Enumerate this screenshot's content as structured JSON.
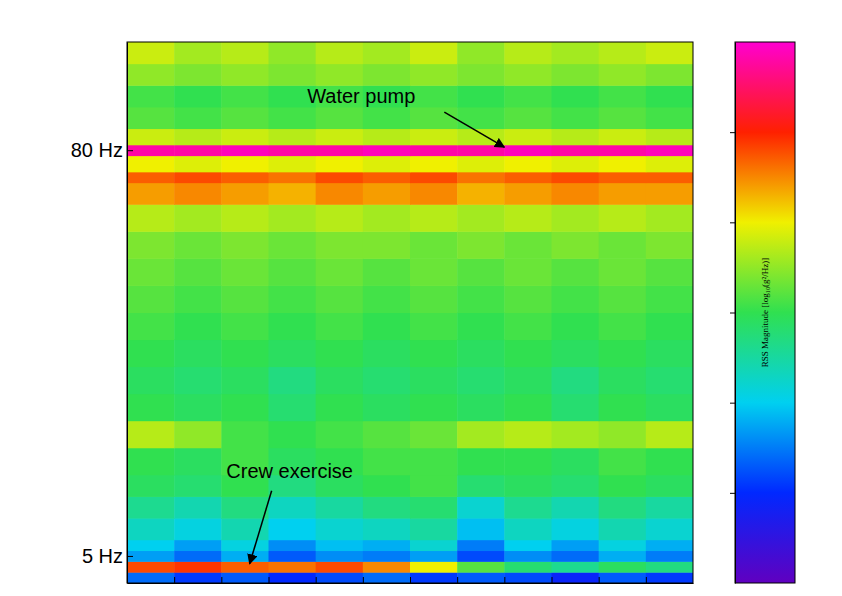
{
  "chart_data": {
    "type": "heatmap",
    "tick_labels": "y",
    "xlim": [
      0,
      12
    ],
    "xticks": [
      1,
      2,
      3,
      4,
      5,
      6,
      7,
      8,
      9,
      10,
      11
    ],
    "ylim": [
      0,
      100
    ],
    "yticks": [
      {
        "value": 5,
        "label": "5 Hz"
      },
      {
        "value": 80,
        "label": "80 Hz"
      }
    ],
    "x_bins": [
      0,
      1,
      2,
      3,
      4,
      5,
      6,
      7,
      8,
      9,
      10,
      11,
      12
    ],
    "y_bins": [
      0,
      2,
      4,
      6,
      8,
      12,
      16,
      20,
      25,
      30,
      35,
      40,
      45,
      50,
      55,
      60,
      65,
      70,
      74,
      76,
      79,
      81,
      84,
      88,
      92,
      96,
      100
    ],
    "values": [
      [
        -8.6,
        -8.9,
        -8.7,
        -9.0,
        -8.8,
        -8.6,
        -8.9,
        -8.7,
        -8.8,
        -9.1,
        -8.7,
        -8.9
      ],
      [
        -5.2,
        -5.1,
        -5.3,
        -5.4,
        -5.2,
        -5.5,
        -6.0,
        -6.8,
        -7.2,
        -7.4,
        -7.1,
        -7.3
      ],
      [
        -8.3,
        -8.6,
        -8.2,
        -8.7,
        -8.4,
        -8.5,
        -8.3,
        -8.8,
        -8.4,
        -8.6,
        -8.2,
        -8.5
      ],
      [
        -8.0,
        -8.3,
        -7.9,
        -8.4,
        -8.1,
        -8.2,
        -7.8,
        -8.5,
        -8.0,
        -8.3,
        -7.9,
        -8.2
      ],
      [
        -7.7,
        -7.9,
        -7.6,
        -8.0,
        -7.8,
        -7.7,
        -7.5,
        -8.1,
        -7.7,
        -7.9,
        -7.6,
        -7.8
      ],
      [
        -7.4,
        -7.6,
        -7.3,
        -7.7,
        -7.5,
        -7.3,
        -7.2,
        -7.8,
        -7.4,
        -7.6,
        -7.3,
        -7.5
      ],
      [
        -7.1,
        -7.2,
        -7.0,
        -7.3,
        -7.1,
        -7.0,
        -6.9,
        -7.2,
        -7.1,
        -7.2,
        -7.0,
        -7.1
      ],
      [
        -7.0,
        -7.1,
        -6.9,
        -7.1,
        -7.0,
        -6.9,
        -6.9,
        -7.0,
        -7.0,
        -7.1,
        -6.9,
        -7.0
      ],
      [
        -6.3,
        -6.5,
        -6.9,
        -7.0,
        -6.9,
        -6.8,
        -6.7,
        -6.4,
        -6.3,
        -6.4,
        -6.5,
        -6.3
      ],
      [
        -7.0,
        -7.1,
        -7.0,
        -7.2,
        -7.0,
        -7.1,
        -7.0,
        -7.1,
        -7.0,
        -7.2,
        -7.0,
        -7.1
      ],
      [
        -7.1,
        -7.2,
        -7.1,
        -7.3,
        -7.1,
        -7.2,
        -7.1,
        -7.2,
        -7.1,
        -7.3,
        -7.1,
        -7.2
      ],
      [
        -7.0,
        -7.1,
        -7.0,
        -7.1,
        -7.0,
        -7.1,
        -7.0,
        -7.1,
        -7.0,
        -7.1,
        -7.0,
        -7.1
      ],
      [
        -6.9,
        -7.0,
        -6.9,
        -7.0,
        -6.9,
        -7.0,
        -6.9,
        -7.0,
        -6.9,
        -7.0,
        -6.9,
        -7.0
      ],
      [
        -6.8,
        -6.9,
        -6.8,
        -6.9,
        -6.8,
        -6.9,
        -6.8,
        -6.9,
        -6.8,
        -6.9,
        -6.8,
        -6.9
      ],
      [
        -6.7,
        -6.8,
        -6.7,
        -6.8,
        -6.7,
        -6.8,
        -6.7,
        -6.8,
        -6.7,
        -6.8,
        -6.7,
        -6.8
      ],
      [
        -6.6,
        -6.7,
        -6.6,
        -6.7,
        -6.6,
        -6.6,
        -6.7,
        -6.6,
        -6.7,
        -6.6,
        -6.7,
        -6.6
      ],
      [
        -6.3,
        -6.4,
        -6.3,
        -6.4,
        -6.3,
        -6.4,
        -6.3,
        -6.4,
        -6.3,
        -6.4,
        -6.3,
        -6.4
      ],
      [
        -5.6,
        -5.5,
        -5.6,
        -5.7,
        -5.5,
        -5.6,
        -5.5,
        -5.7,
        -5.6,
        -5.5,
        -5.6,
        -5.6
      ],
      [
        -5.3,
        -5.2,
        -5.3,
        -5.4,
        -5.2,
        -5.3,
        -5.2,
        -5.4,
        -5.3,
        -5.2,
        -5.3,
        -5.3
      ],
      [
        -6.0,
        -6.1,
        -6.0,
        -6.1,
        -6.0,
        -6.1,
        -6.0,
        -6.1,
        -6.0,
        -6.1,
        -6.0,
        -6.1
      ],
      [
        -4.2,
        -4.2,
        -4.1,
        -4.2,
        -4.2,
        -4.1,
        -4.2,
        -4.2,
        -4.1,
        -4.2,
        -4.2,
        -4.1
      ],
      [
        -6.2,
        -6.3,
        -6.2,
        -6.3,
        -6.2,
        -6.3,
        -6.2,
        -6.3,
        -6.2,
        -6.3,
        -6.2,
        -6.3
      ],
      [
        -6.8,
        -6.9,
        -6.8,
        -6.9,
        -6.8,
        -6.9,
        -6.8,
        -6.9,
        -6.8,
        -6.9,
        -6.8,
        -6.9
      ],
      [
        -6.9,
        -7.0,
        -6.9,
        -7.0,
        -6.9,
        -7.0,
        -6.9,
        -7.0,
        -6.9,
        -7.0,
        -6.9,
        -7.0
      ],
      [
        -6.5,
        -6.6,
        -6.5,
        -6.6,
        -6.5,
        -6.6,
        -6.5,
        -6.6,
        -6.5,
        -6.6,
        -6.5,
        -6.6
      ],
      [
        -6.2,
        -6.4,
        -6.3,
        -6.5,
        -6.3,
        -6.4,
        -6.2,
        -6.5,
        -6.3,
        -6.4,
        -6.3,
        -6.2
      ]
    ],
    "colorbar": {
      "label": "RSS Magnitude [log₁₀(g²/Hz)]",
      "range": [
        -10,
        -4
      ],
      "ticks": [
        -9,
        -8,
        -7,
        -6,
        -5
      ]
    },
    "annotations": [
      {
        "text": "Water pump",
        "x": 8,
        "y": 80
      },
      {
        "text": "Crew exercise",
        "x": 2.6,
        "y": 3
      }
    ]
  }
}
